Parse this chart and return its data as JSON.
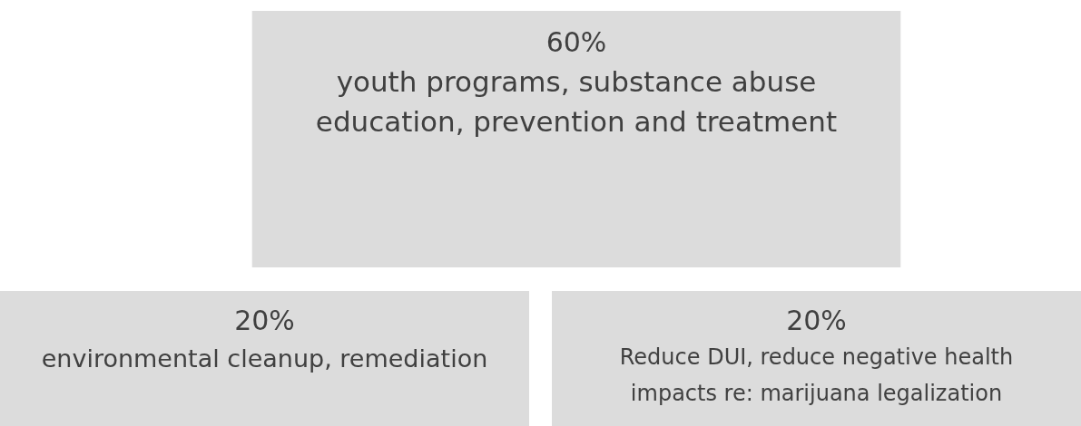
{
  "chart_data": {
    "type": "other",
    "categories": [
      "youth programs, substance abuse education, prevention and treatment",
      "environmental cleanup, remediation",
      "Reduce DUI, reduce negative health impacts re: marijuana legalization"
    ],
    "values": [
      60,
      20,
      20
    ],
    "value_labels": [
      "60%",
      "20%",
      "20%"
    ],
    "colors": [
      "#dcdcdc",
      "#dcdcdc",
      "#dcdcdc"
    ]
  }
}
